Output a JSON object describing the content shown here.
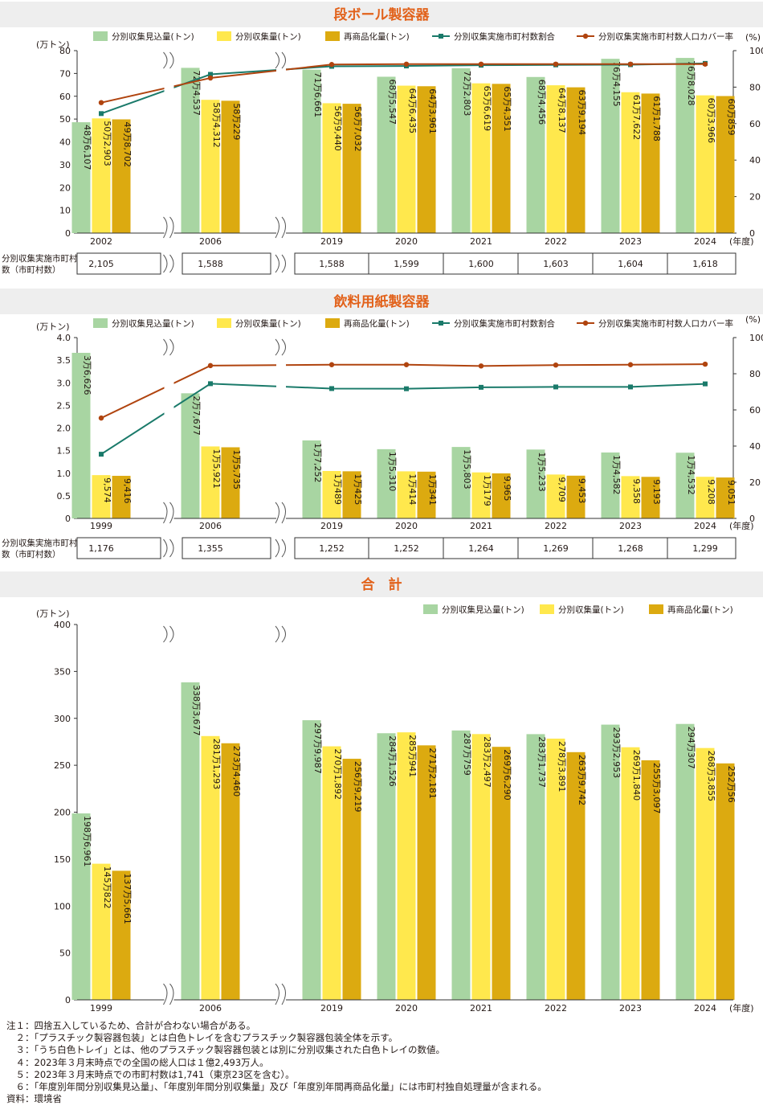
{
  "chart_data": [
    {
      "type": "bar",
      "title": "段ボール製容器",
      "y_unit": "(万トン)",
      "y2_unit": "(%)",
      "x_unit": "(年度)",
      "ylim": [
        0,
        80
      ],
      "y2lim": [
        0,
        100
      ],
      "yticks": [
        "0",
        "10",
        "20",
        "30",
        "40",
        "50",
        "60",
        "70",
        "80"
      ],
      "y2ticks": [
        "0",
        "20",
        "40",
        "60",
        "80",
        "100"
      ],
      "categories": [
        "2002",
        "2006",
        "2019",
        "2020",
        "2021",
        "2022",
        "2023",
        "2024"
      ],
      "legend": [
        "分別収集見込量(トン)",
        "分別収集量(トン)",
        "再商品化量(トン)",
        "分別収集実施市町村数割合",
        "分別収集実施市町村数人口カバー率"
      ],
      "series": [
        {
          "name": "分別収集見込量(トン)",
          "values": [
            48.6107,
            72.4537,
            71.6661,
            68.5547,
            72.2803,
            68.4456,
            76.4155,
            76.8028
          ],
          "labels": [
            "48万6,107",
            "72万4,537",
            "71万6,661",
            "68万5,547",
            "72万2,803",
            "68万4,456",
            "76万4,155",
            "76万8,028"
          ]
        },
        {
          "name": "分別収集量(トン)",
          "values": [
            50.2903,
            58.4312,
            56.944,
            64.6435,
            65.6619,
            64.8137,
            61.7622,
            60.3966
          ],
          "labels": [
            "50万2,903",
            "58万4,312",
            "56万9,440",
            "64万6,435",
            "65万6,619",
            "64万8,137",
            "61万7,622",
            "60万3,966"
          ]
        },
        {
          "name": "再商品化量(トン)",
          "values": [
            49.8702,
            58.0229,
            56.7032,
            64.3961,
            65.4351,
            63.9194,
            61.1788,
            60.0859
          ],
          "labels": [
            "49万8,702",
            "58万229",
            "56万7,032",
            "64万3,961",
            "65万4,351",
            "63万9,194",
            "61万1,788",
            "60万859"
          ]
        },
        {
          "name": "分別収集実施市町村数割合",
          "axis": "right",
          "values": [
            65.5,
            87.0,
            91.4,
            91.6,
            92.0,
            92.2,
            92.3,
            93.0
          ]
        },
        {
          "name": "分別収集実施市町村数人口カバー率",
          "axis": "right",
          "values": [
            71.5,
            85.0,
            92.4,
            92.6,
            92.6,
            92.6,
            92.6,
            92.6
          ]
        }
      ],
      "table": {
        "label": "分別収集実施市町村数（市町村数）",
        "values": [
          "2,105",
          "1,588",
          "1,588",
          "1,599",
          "1,600",
          "1,603",
          "1,604",
          "1,618"
        ]
      }
    },
    {
      "type": "bar",
      "title": "飲料用紙製容器",
      "y_unit": "(万トン)",
      "y2_unit": "(%)",
      "x_unit": "(年度)",
      "ylim": [
        0,
        4.0
      ],
      "y2lim": [
        0,
        100
      ],
      "yticks": [
        "0",
        "0.5",
        "1.0",
        "1.5",
        "2.0",
        "2.5",
        "3.0",
        "3.5",
        "4.0"
      ],
      "y2ticks": [
        "0",
        "20",
        "40",
        "60",
        "80",
        "100"
      ],
      "categories": [
        "1999",
        "2006",
        "2019",
        "2020",
        "2021",
        "2022",
        "2023",
        "2024"
      ],
      "legend": [
        "分別収集見込量(トン)",
        "分別収集量(トン)",
        "再商品化量(トン)",
        "分別収集実施市町村数割合",
        "分別収集実施市町村数人口カバー率"
      ],
      "series": [
        {
          "name": "分別収集見込量(トン)",
          "values": [
            3.6626,
            2.7677,
            1.7252,
            1.531,
            1.5803,
            1.5233,
            1.4582,
            1.4532
          ],
          "labels": [
            "3万6,626",
            "2万7,677",
            "1万7,252",
            "1万5,310",
            "1万5,803",
            "1万5,233",
            "1万4,582",
            "1万4,532"
          ]
        },
        {
          "name": "分別収集量(トン)",
          "values": [
            0.9574,
            1.5921,
            1.0489,
            1.0414,
            1.0179,
            0.9709,
            0.9358,
            0.9208
          ],
          "labels": [
            "9,574",
            "1万5,921",
            "1万489",
            "1万414",
            "1万179",
            "9,709",
            "9,358",
            "9,208"
          ]
        },
        {
          "name": "再商品化量(トン)",
          "values": [
            0.9416,
            1.5735,
            1.0425,
            1.0341,
            0.9965,
            0.9453,
            0.9193,
            0.9051
          ],
          "labels": [
            "9,416",
            "1万5,735",
            "1万425",
            "1万341",
            "9,965",
            "9,453",
            "9,193",
            "9,051"
          ]
        },
        {
          "name": "分別収集実施市町村数割合",
          "axis": "right",
          "values": [
            35.5,
            74.5,
            71.8,
            71.7,
            72.5,
            72.7,
            72.7,
            74.4
          ]
        },
        {
          "name": "分別収集実施市町村数人口カバー率",
          "axis": "right",
          "values": [
            55.5,
            84.5,
            85.0,
            85.0,
            84.3,
            84.8,
            85.0,
            85.3
          ]
        }
      ],
      "table": {
        "label": "分別収集実施市町村数（市町村数）",
        "values": [
          "1,176",
          "1,355",
          "1,252",
          "1,252",
          "1,264",
          "1,269",
          "1,268",
          "1,299"
        ]
      }
    },
    {
      "type": "bar",
      "title": "合　計",
      "y_unit": "(万トン)",
      "x_unit": "(年度)",
      "ylim": [
        0,
        400
      ],
      "yticks": [
        "0",
        "50",
        "100",
        "150",
        "200",
        "250",
        "300",
        "350",
        "400"
      ],
      "categories": [
        "1999",
        "2006",
        "2019",
        "2020",
        "2021",
        "2022",
        "2023",
        "2024"
      ],
      "legend": [
        "分別収集見込量(トン)",
        "分別収集量(トン)",
        "再商品化量(トン)"
      ],
      "series": [
        {
          "name": "分別収集見込量(トン)",
          "values": [
            198.6961,
            338.3677,
            297.9987,
            284.1526,
            287.0759,
            283.1737,
            293.2953,
            294.0307
          ],
          "labels": [
            "198万6,961",
            "338万3,677",
            "297万9,987",
            "284万1,526",
            "287万759",
            "283万1,737",
            "293万2,953",
            "294万307"
          ]
        },
        {
          "name": "分別収集量(トン)",
          "values": [
            145.0822,
            281.1293,
            270.1892,
            285.0941,
            283.2497,
            278.3891,
            269.184,
            268.3855
          ],
          "labels": [
            "145万822",
            "281万1,293",
            "270万1,892",
            "285万941",
            "283万2,497",
            "278万3,891",
            "269万1,840",
            "268万3,855"
          ]
        },
        {
          "name": "再商品化量(トン)",
          "values": [
            137.5661,
            273.446,
            256.9219,
            271.2181,
            269.629,
            263.9742,
            255.3097,
            252.0056
          ],
          "labels": [
            "137万5,661",
            "273万4,460",
            "256万9,219",
            "271万2,181",
            "269万6,290",
            "263万9,742",
            "255万3,097",
            "252万56"
          ]
        }
      ]
    }
  ],
  "colors": {
    "heading_bg": "#eeeeee",
    "heading_text": "#e2621b",
    "bar_collect_plan": "#a8d5a2",
    "bar_collected": "#ffe84d",
    "bar_recycled": "#dcaa10",
    "line_ratio": "#1a7a6a",
    "line_coverage": "#b0440f"
  },
  "notes": [
    "注１：四捨五入しているため、合計が合わない場合がある。",
    "　２：「プラスチック製容器包装」とは白色トレイを含むプラスチック製容器包装全体を示す。",
    "　３：「うち白色トレイ」とは、他のプラスチック製容器包装とは別に分別収集された白色トレイの数値。",
    "　４：2023年３月末時点での全国の総人口は１億2,493万人。",
    "　５：2023年３月末時点での市町村数は1,741（東京23区を含む）。",
    "　６：「年度別年間分別収集見込量」、「年度別年間分別収集量」及び「年度別年間再商品化量」には市町村独自処理量が含まれる。",
    "資料：環境省"
  ]
}
